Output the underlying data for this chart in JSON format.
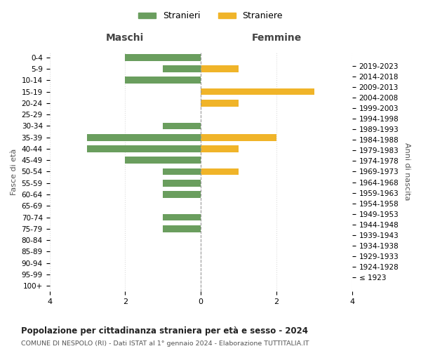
{
  "age_groups": [
    "100+",
    "95-99",
    "90-94",
    "85-89",
    "80-84",
    "75-79",
    "70-74",
    "65-69",
    "60-64",
    "55-59",
    "50-54",
    "45-49",
    "40-44",
    "35-39",
    "30-34",
    "25-29",
    "20-24",
    "15-19",
    "10-14",
    "5-9",
    "0-4"
  ],
  "birth_years": [
    "≤ 1923",
    "1924-1928",
    "1929-1933",
    "1934-1938",
    "1939-1943",
    "1944-1948",
    "1949-1953",
    "1954-1958",
    "1959-1963",
    "1964-1968",
    "1969-1973",
    "1974-1978",
    "1979-1983",
    "1984-1988",
    "1989-1993",
    "1994-1998",
    "1999-2003",
    "2004-2008",
    "2009-2013",
    "2014-2018",
    "2019-2023"
  ],
  "maschi": [
    0,
    0,
    0,
    0,
    0,
    1,
    1,
    0,
    1,
    1,
    1,
    2,
    3,
    3,
    1,
    0,
    0,
    0,
    2,
    1,
    2
  ],
  "femmine": [
    0,
    0,
    0,
    0,
    0,
    0,
    0,
    0,
    0,
    0,
    1,
    0,
    1,
    2,
    0,
    0,
    1,
    3,
    0,
    1,
    0
  ],
  "color_maschi": "#6a9e5e",
  "color_femmine": "#f0b429",
  "title_main": "Popolazione per cittadinanza straniera per età e sesso - 2024",
  "title_sub": "COMUNE DI NESPOLO (RI) - Dati ISTAT al 1° gennaio 2024 - Elaborazione TUTTITALIA.IT",
  "label_maschi": "Stranieri",
  "label_femmine": "Straniere",
  "label_left": "Maschi",
  "label_right": "Femmine",
  "ylabel_left": "Fasce di età",
  "ylabel_right": "Anni di nascita",
  "xlim": 4,
  "background_color": "#ffffff",
  "grid_color": "#dddddd"
}
